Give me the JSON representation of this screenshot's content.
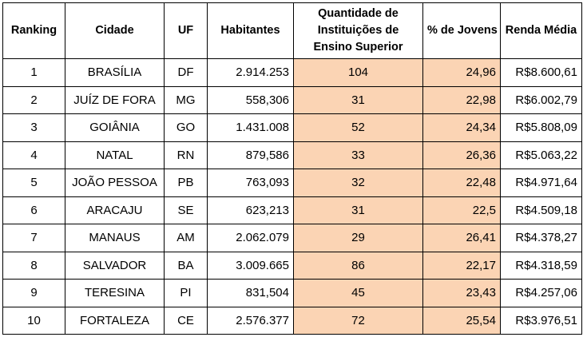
{
  "table": {
    "headers": [
      "Ranking",
      "Cidade",
      "UF",
      "Habitantes",
      "Quantidade de Instituições de Ensino Superior",
      "% de Jovens",
      "Renda Média"
    ],
    "rows": [
      [
        "1",
        "BRASÍLIA",
        "DF",
        "2.914.253",
        "104",
        "24,96",
        "R$8.600,61"
      ],
      [
        "2",
        "JUÍZ DE FORA",
        "MG",
        "558,306",
        "31",
        "22,98",
        "R$6.002,79"
      ],
      [
        "3",
        "GOIÂNIA",
        "GO",
        "1.431.008",
        "52",
        "24,34",
        "R$5.808,09"
      ],
      [
        "4",
        "NATAL",
        "RN",
        "879,586",
        "33",
        "26,36",
        "R$5.063,22"
      ],
      [
        "5",
        "JOÃO PESSOA",
        "PB",
        "763,093",
        "32",
        "22,48",
        "R$4.971,64"
      ],
      [
        "6",
        "ARACAJU",
        "SE",
        "623,213",
        "31",
        "22,5",
        "R$4.509,18"
      ],
      [
        "7",
        "MANAUS",
        "AM",
        "2.062.079",
        "29",
        "26,41",
        "R$4.378,27"
      ],
      [
        "8",
        "SALVADOR",
        "BA",
        "3.009.665",
        "86",
        "22,17",
        "R$4.318,59"
      ],
      [
        "9",
        "TERESINA",
        "PI",
        "831,504",
        "45",
        "23,43",
        "R$4.257,06"
      ],
      [
        "10",
        "FORTALEZA",
        "CE",
        "2.576.377",
        "72",
        "25,54",
        "R$3.976,51"
      ]
    ],
    "highlight_color": "#fbd4b4"
  }
}
